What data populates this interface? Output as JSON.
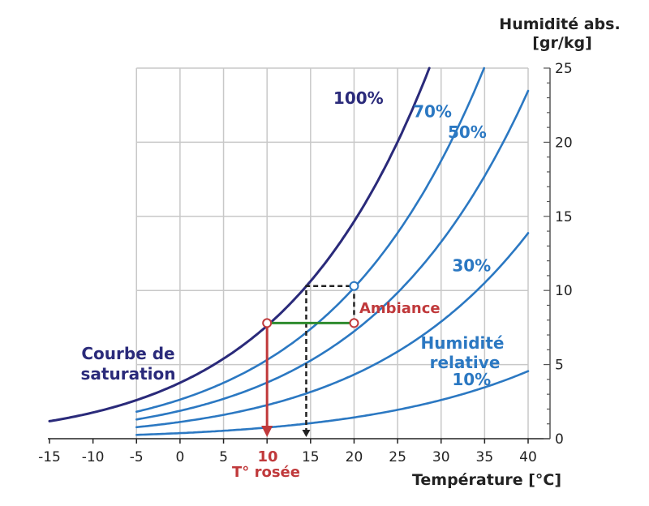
{
  "chart_data": {
    "type": "line",
    "xlabel": "Température [°C]",
    "ylabel_line1": "Humidité abs.",
    "ylabel_line2": "[gr/kg]",
    "xlim": [
      -15,
      40
    ],
    "ylim": [
      0,
      25
    ],
    "x_ticks": [
      -15,
      -10,
      -5,
      0,
      5,
      10,
      15,
      20,
      25,
      30,
      35,
      40
    ],
    "y_ticks": [
      0,
      5,
      10,
      15,
      20,
      25
    ],
    "grid": true,
    "series": [
      {
        "name": "100%",
        "rh": 1.0,
        "x_start": -15,
        "color": "#2a2a7a",
        "label_at": [
          20.5,
          22.6
        ]
      },
      {
        "name": "70%",
        "rh": 0.7,
        "x_start": -5,
        "color": "#2b78c2",
        "label_at": [
          29,
          21.7
        ]
      },
      {
        "name": "50%",
        "rh": 0.5,
        "x_start": -5,
        "color": "#2b78c2",
        "label_at": [
          33,
          20.3
        ]
      },
      {
        "name": "30%",
        "rh": 0.3,
        "x_start": -5,
        "color": "#2b78c2",
        "label_at": [
          33.5,
          11.3
        ]
      },
      {
        "name": "10%",
        "rh": 0.1,
        "x_start": -5,
        "color": "#2b78c2",
        "label_at": [
          33.5,
          3.6
        ]
      }
    ],
    "annotations": {
      "saturation_label_1": "Courbe de",
      "saturation_label_2": "saturation",
      "relative_label_1": "Humidité",
      "relative_label_2": "relative",
      "ambiance_label": "Ambiance",
      "dew_value": "10",
      "dew_label": "T° rosée"
    },
    "key_points": {
      "ambient": [
        20,
        7.8
      ],
      "dew_point": [
        10,
        7.8
      ],
      "saturated_at_ambient": [
        20,
        10.3
      ],
      "dashed_drop_x": 14.5
    },
    "colors": {
      "saturation": "#2a2a7a",
      "rh_curves": "#2b78c2",
      "dew": "#c0393b",
      "ambient_line": "#2e8b2e",
      "dashed": "#222222",
      "grid": "#c8c8c8"
    }
  }
}
